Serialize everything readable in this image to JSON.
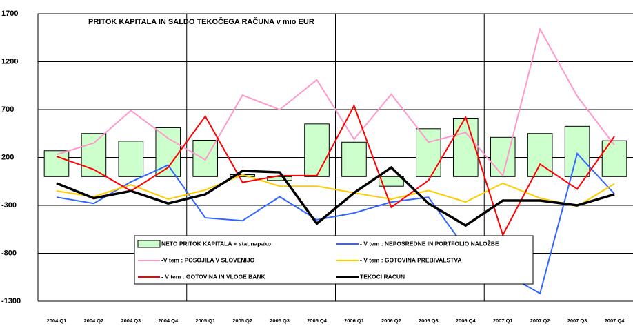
{
  "chart_data": {
    "type": "bar-line",
    "title": "PRITOK KAPITALA IN SALDO TEKOČEGA RAČUNA v mio EUR",
    "categories": [
      "2004 Q1",
      "2004 Q2",
      "2004 Q3",
      "2004 Q4",
      "2005 Q1",
      "2005 Q2",
      "2005 Q3",
      "2005 Q4",
      "2006 Q1",
      "2006 Q2",
      "2006 Q3",
      "2006 Q4",
      "2007 Q1",
      "2007 Q2",
      "2007 Q3",
      "2007 Q4"
    ],
    "ylim": [
      -1300,
      1700
    ],
    "yticks": [
      -1300,
      -800,
      -300,
      200,
      700,
      1200,
      1700
    ],
    "grid": true,
    "series": [
      {
        "name": "NETO PRITOK KAPITALA + stat.napako",
        "type": "bar",
        "color": "#ccffcc",
        "values": [
          270,
          450,
          370,
          510,
          380,
          20,
          -40,
          550,
          360,
          -100,
          500,
          610,
          410,
          450,
          525,
          375
        ]
      },
      {
        "name": "- V tem : NEPOSREDNE IN PORTFOLIO NALOŽBE",
        "type": "line",
        "color": "#3366ff",
        "values": [
          -215,
          -280,
          -55,
          120,
          -430,
          -460,
          -210,
          -450,
          -380,
          -265,
          -215,
          -750,
          -1000,
          -1220,
          240,
          -180
        ]
      },
      {
        "name": "-V tem : POSOJILA V SLOVENIJO",
        "type": "line",
        "color": "#ff99cc",
        "values": [
          230,
          350,
          690,
          400,
          175,
          850,
          700,
          1010,
          390,
          860,
          360,
          460,
          10,
          1540,
          840,
          330
        ]
      },
      {
        "name": "- V tem : GOTOVINA PREBIVALSTVA",
        "type": "line",
        "color": "#ffcc00",
        "values": [
          -150,
          -210,
          -85,
          -235,
          -140,
          20,
          -100,
          -100,
          -170,
          -235,
          -145,
          -265,
          -70,
          -225,
          -310,
          -75
        ]
      },
      {
        "name": "- V tem : GOTOVINA IN VLOGE BANK",
        "type": "line",
        "color": "#ff0000",
        "values": [
          210,
          75,
          -150,
          95,
          630,
          -60,
          10,
          10,
          740,
          -320,
          -40,
          620,
          -610,
          130,
          -130,
          420
        ]
      },
      {
        "name": "TEKOČI RAČUN",
        "type": "line",
        "color": "#000000",
        "values": [
          -70,
          -225,
          -150,
          -280,
          -185,
          60,
          45,
          -490,
          -170,
          95,
          -280,
          -510,
          -250,
          -250,
          -300,
          -185
        ]
      }
    ]
  }
}
